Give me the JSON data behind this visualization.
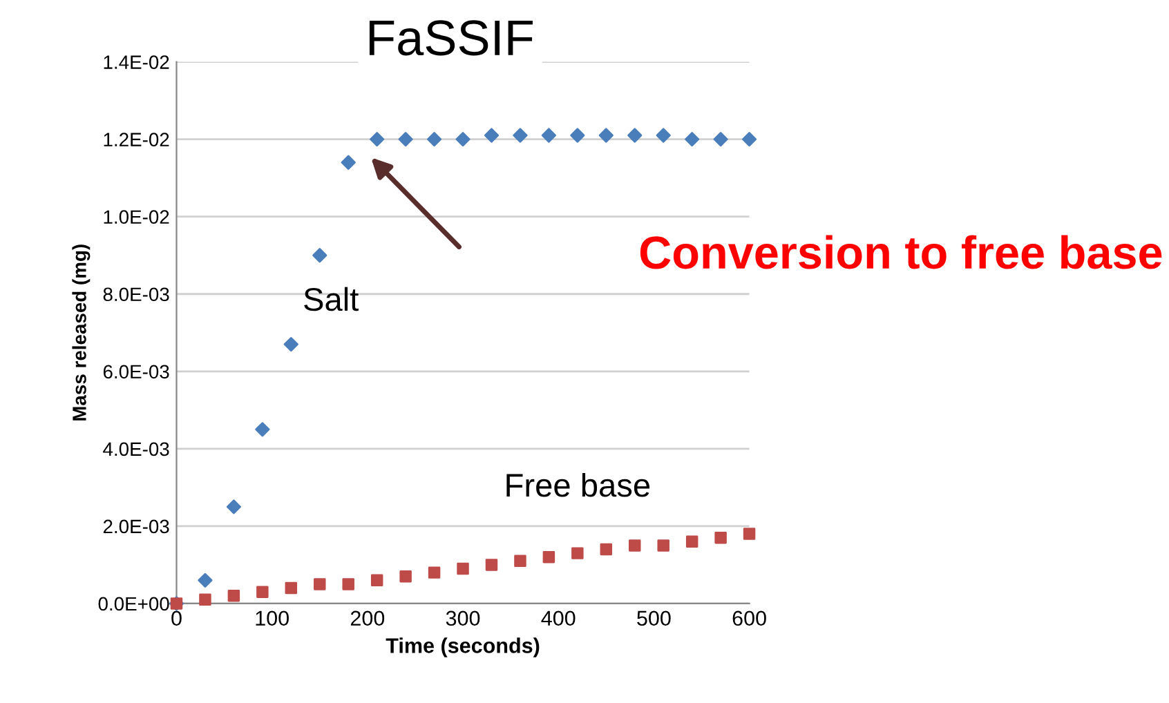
{
  "chart_data": {
    "type": "scatter",
    "title": "FaSSIF",
    "xlabel": "Time (seconds)",
    "ylabel": "Mass released (mg)",
    "x": [
      0,
      30,
      60,
      90,
      120,
      150,
      180,
      210,
      240,
      270,
      300,
      330,
      360,
      390,
      420,
      450,
      480,
      510,
      540,
      570,
      600
    ],
    "series": [
      {
        "name": "Salt",
        "color": "#4a7ebb",
        "marker": "diamond",
        "values": [
          0,
          0.0006,
          0.0025,
          0.0045,
          0.0067,
          0.009,
          0.0114,
          0.012,
          0.012,
          0.012,
          0.012,
          0.0121,
          0.0121,
          0.0121,
          0.0121,
          0.0121,
          0.0121,
          0.0121,
          0.012,
          0.012,
          0.012
        ]
      },
      {
        "name": "Free base",
        "color": "#be4b48",
        "marker": "square",
        "values": [
          0,
          0.0001,
          0.0002,
          0.0003,
          0.0004,
          0.0005,
          0.0005,
          0.0006,
          0.0007,
          0.0008,
          0.0009,
          0.001,
          0.0011,
          0.0012,
          0.0013,
          0.0014,
          0.0015,
          0.0015,
          0.0016,
          0.0017,
          0.0018
        ]
      }
    ],
    "xlim": [
      0,
      600
    ],
    "xticks": [
      0,
      100,
      200,
      300,
      400,
      500,
      600
    ],
    "ylim": [
      0,
      0.014
    ],
    "yticks": [
      {
        "value": 0,
        "label": "0.0E+00"
      },
      {
        "value": 0.002,
        "label": "2.0E-03"
      },
      {
        "value": 0.004,
        "label": "4.0E-03"
      },
      {
        "value": 0.006,
        "label": "6.0E-03"
      },
      {
        "value": 0.008,
        "label": "8.0E-03"
      },
      {
        "value": 0.01,
        "label": "1.0E-02"
      },
      {
        "value": 0.012,
        "label": "1.2E-02"
      },
      {
        "value": 0.014,
        "label": "1.4E-02"
      }
    ],
    "grid": "y",
    "legend": false,
    "annotations": [
      "Conversion to free base"
    ]
  }
}
